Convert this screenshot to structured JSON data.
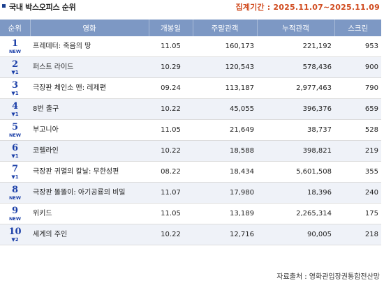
{
  "header": {
    "title": "국내 박스오피스 순위",
    "period": "집계기간 : 2025.11.07~2025.11.09"
  },
  "columns": [
    "순위",
    "영화",
    "개봉일",
    "주말관객",
    "누적관객",
    "스크린"
  ],
  "rows": [
    {
      "rank": "1",
      "change": "NEW",
      "title": "프레데터: 죽음의 땅",
      "open": "11.05",
      "weekend": "160,173",
      "total": "221,192",
      "screens": "953"
    },
    {
      "rank": "2",
      "change": "▼1",
      "title": "퍼스트 라이드",
      "open": "10.29",
      "weekend": "120,543",
      "total": "578,436",
      "screens": "900"
    },
    {
      "rank": "3",
      "change": "▼1",
      "title": "극장판 체인소 맨: 레제편",
      "open": "09.24",
      "weekend": "113,187",
      "total": "2,977,463",
      "screens": "790"
    },
    {
      "rank": "4",
      "change": "▼1",
      "title": "8번 출구",
      "open": "10.22",
      "weekend": "45,055",
      "total": "396,376",
      "screens": "659"
    },
    {
      "rank": "5",
      "change": "NEW",
      "title": "부고니아",
      "open": "11.05",
      "weekend": "21,649",
      "total": "38,737",
      "screens": "528"
    },
    {
      "rank": "6",
      "change": "▼1",
      "title": "코렐라인",
      "open": "10.22",
      "weekend": "18,588",
      "total": "398,821",
      "screens": "219"
    },
    {
      "rank": "7",
      "change": "▼1",
      "title": "극장판 귀멸의 칼날: 무한성편",
      "open": "08.22",
      "weekend": "18,434",
      "total": "5,601,508",
      "screens": "355"
    },
    {
      "rank": "8",
      "change": "NEW",
      "title": "극장판 똘똘이: 아기공룡의 비밀",
      "open": "11.07",
      "weekend": "17,980",
      "total": "18,396",
      "screens": "240"
    },
    {
      "rank": "9",
      "change": "NEW",
      "title": "위키드",
      "open": "11.05",
      "weekend": "13,189",
      "total": "2,265,314",
      "screens": "175"
    },
    {
      "rank": "10",
      "change": "▼2",
      "title": "세계의 주인",
      "open": "10.22",
      "weekend": "12,716",
      "total": "90,005",
      "screens": "218"
    }
  ],
  "footer": {
    "source": "자료출처 : 영화관입장권통합전산망"
  },
  "colors": {
    "header_bg": "#7d98c4",
    "rank_blue": "#1b3fa8",
    "period_orange": "#d04a1e",
    "zebra": "#eff2f8"
  }
}
